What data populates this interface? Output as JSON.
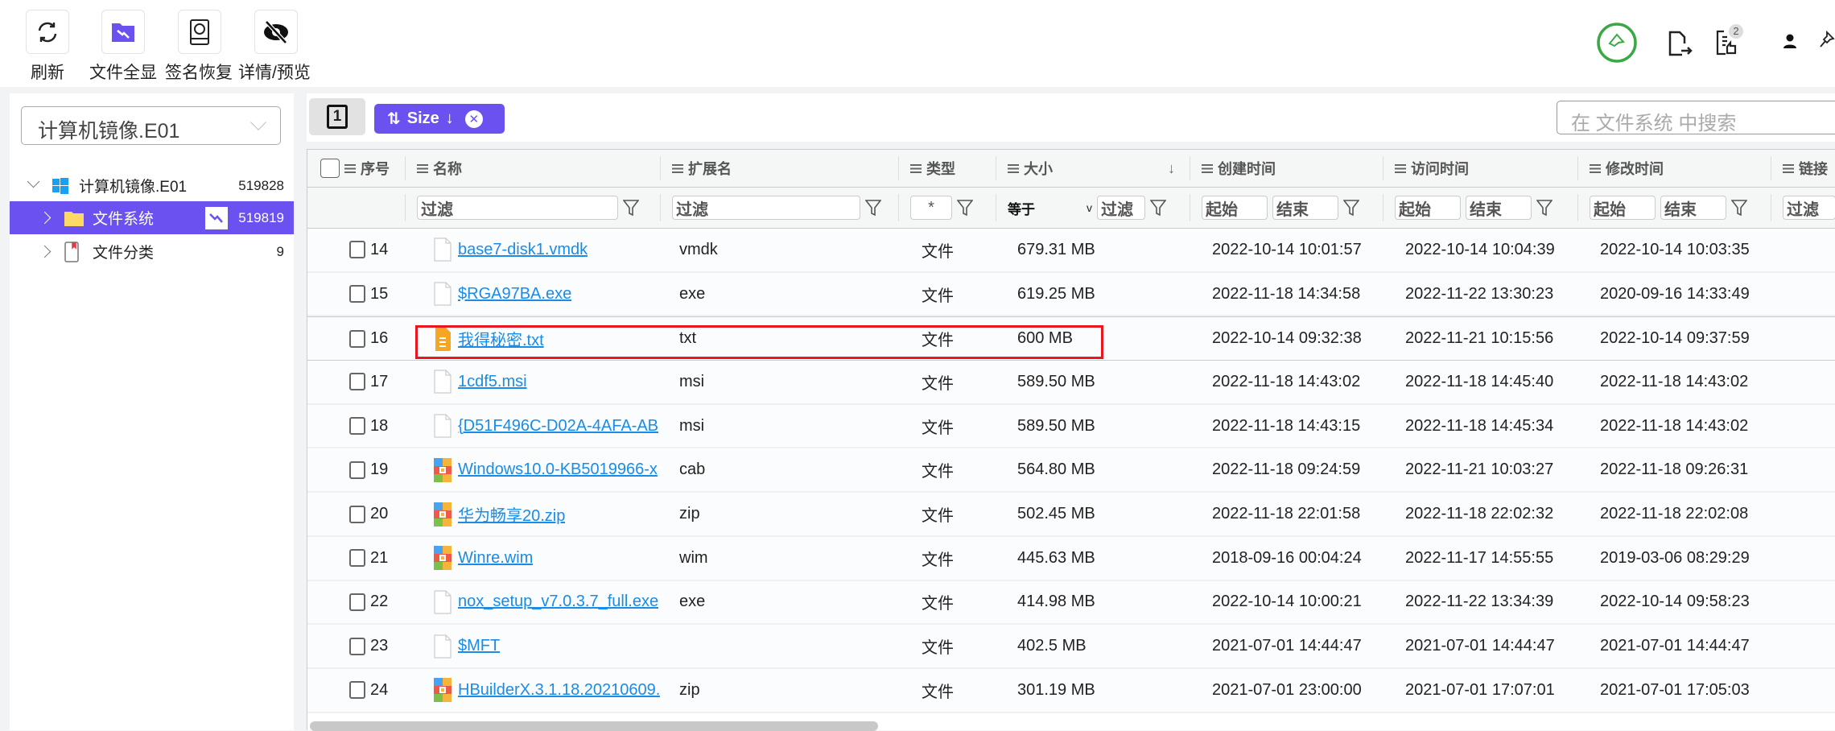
{
  "toolbar": {
    "buttons": [
      {
        "label": "刷新",
        "icon": "refresh-icon"
      },
      {
        "label": "文件全显",
        "icon": "folder-show-all-icon"
      },
      {
        "label": "签名恢复",
        "icon": "disk-restore-icon"
      },
      {
        "label": "详情/预览",
        "icon": "eye-off-icon"
      }
    ],
    "right_icons": [
      "bell-icon",
      "file-export-icon",
      "task-list-icon",
      "user-icon",
      "pin-icon"
    ],
    "badge": "2"
  },
  "sidebar": {
    "dropdown": "计算机镜像.E01",
    "tree": [
      {
        "label": "计算机镜像.E01",
        "count": "519828",
        "icon": "windows-icon"
      },
      {
        "label": "文件系统",
        "count": "519819",
        "icon": "folder-icon",
        "selected": true
      },
      {
        "label": "文件分类",
        "count": "9",
        "icon": "category-icon"
      }
    ]
  },
  "tabs": {
    "page": "1",
    "sort_chip": "Size",
    "search_placeholder": "在 文件系统 中搜索"
  },
  "colors": {
    "accent": "#6b52f0",
    "link": "#1a8ce8",
    "highlight": "#e8161e",
    "bell": "#3aa845"
  },
  "table": {
    "headers": [
      "序号",
      "名称",
      "扩展名",
      "类型",
      "大小",
      "创建时间",
      "访问时间",
      "修改时间",
      "链接"
    ],
    "filters": {
      "text": "过滤",
      "type": "*",
      "size_op": "等于",
      "start": "起始",
      "end": "结束"
    },
    "rows": [
      {
        "n": "14",
        "name": "base7-disk1.vmdk",
        "ext": "vmdk",
        "type": "文件",
        "size": "679.31 MB",
        "ctime": "2022-10-14 10:01:57",
        "atime": "2022-10-14 10:04:39",
        "mtime": "2022-10-14 10:03:35",
        "icon": "file"
      },
      {
        "n": "15",
        "name": "$RGA97BA.exe",
        "ext": "exe",
        "type": "文件",
        "size": "619.25 MB",
        "ctime": "2022-11-18 14:34:58",
        "atime": "2022-11-22 13:30:23",
        "mtime": "2020-09-16 14:33:49",
        "icon": "file"
      },
      {
        "n": "16",
        "name": "我得秘密.txt",
        "ext": "txt",
        "type": "文件",
        "size": "600 MB",
        "ctime": "2022-10-14 09:32:38",
        "atime": "2022-11-21 10:15:56",
        "mtime": "2022-10-14 09:37:59",
        "icon": "txt"
      },
      {
        "n": "17",
        "name": "1cdf5.msi",
        "ext": "msi",
        "type": "文件",
        "size": "589.50 MB",
        "ctime": "2022-11-18 14:43:02",
        "atime": "2022-11-18 14:45:40",
        "mtime": "2022-11-18 14:43:02",
        "icon": "file"
      },
      {
        "n": "18",
        "name": "{D51F496C-D02A-4AFA-AB",
        "ext": "msi",
        "type": "文件",
        "size": "589.50 MB",
        "ctime": "2022-11-18 14:43:15",
        "atime": "2022-11-18 14:45:34",
        "mtime": "2022-11-18 14:43:02",
        "icon": "file"
      },
      {
        "n": "19",
        "name": "Windows10.0-KB5019966-x",
        "ext": "cab",
        "type": "文件",
        "size": "564.80 MB",
        "ctime": "2022-11-18 09:24:59",
        "atime": "2022-11-21 10:03:27",
        "mtime": "2022-11-18 09:26:31",
        "icon": "archive"
      },
      {
        "n": "20",
        "name": "华为畅享20.zip",
        "ext": "zip",
        "type": "文件",
        "size": "502.45 MB",
        "ctime": "2022-11-18 22:01:58",
        "atime": "2022-11-18 22:02:32",
        "mtime": "2022-11-18 22:02:08",
        "icon": "archive"
      },
      {
        "n": "21",
        "name": "Winre.wim",
        "ext": "wim",
        "type": "文件",
        "size": "445.63 MB",
        "ctime": "2018-09-16 00:04:24",
        "atime": "2022-11-17 14:55:55",
        "mtime": "2019-03-06 08:29:29",
        "icon": "archive"
      },
      {
        "n": "22",
        "name": "nox_setup_v7.0.3.7_full.exe",
        "ext": "exe",
        "type": "文件",
        "size": "414.98 MB",
        "ctime": "2022-10-14 10:00:21",
        "atime": "2022-11-22 13:34:39",
        "mtime": "2022-10-14 09:58:23",
        "icon": "file"
      },
      {
        "n": "23",
        "name": "$MFT",
        "ext": "",
        "type": "文件",
        "size": "402.5 MB",
        "ctime": "2021-07-01 14:44:47",
        "atime": "2021-07-01 14:44:47",
        "mtime": "2021-07-01 14:44:47",
        "icon": "file"
      },
      {
        "n": "24",
        "name": "HBuilderX.3.1.18.20210609.",
        "ext": "zip",
        "type": "文件",
        "size": "301.19 MB",
        "ctime": "2021-07-01 23:00:00",
        "atime": "2021-07-01 17:07:01",
        "mtime": "2021-07-01 17:05:03",
        "icon": "archive"
      }
    ]
  }
}
